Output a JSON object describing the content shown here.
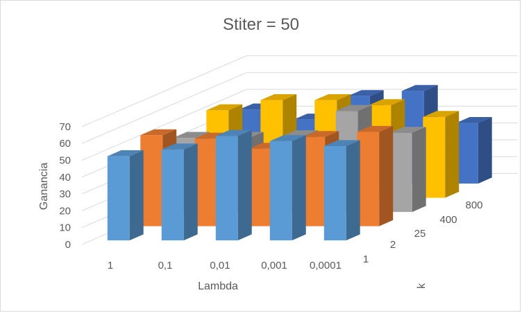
{
  "chart_data": {
    "type": "bar",
    "subtype": "3d-column",
    "title": "Stiter = 50",
    "xlabel": "Lambda",
    "ylabel": "Ganancia",
    "depthlabel": "k",
    "categories": [
      "1",
      "0,1",
      "0,01",
      "0,001",
      "0,0001"
    ],
    "series_labels": [
      "1",
      "2",
      "25",
      "400",
      "800"
    ],
    "ylim": [
      0,
      70
    ],
    "yticks": [
      "0",
      "10",
      "20",
      "30",
      "40",
      "50",
      "60",
      "70"
    ],
    "grid": true,
    "legend": "none",
    "series": [
      {
        "label": "1",
        "color": "#5b9bd5",
        "values": [
          50,
          54,
          62,
          59,
          56
        ]
      },
      {
        "label": "2",
        "color": "#ed7d31",
        "values": [
          54,
          52,
          46,
          53,
          56
        ]
      },
      {
        "label": "25",
        "color": "#a5a5a5",
        "values": [
          44,
          44,
          45,
          60,
          47
        ]
      },
      {
        "label": "400",
        "color": "#ffc000",
        "values": [
          52,
          58,
          58,
          55,
          48
        ]
      },
      {
        "label": "800",
        "color": "#4472c4",
        "values": [
          44,
          38,
          52,
          55,
          36
        ]
      }
    ]
  }
}
